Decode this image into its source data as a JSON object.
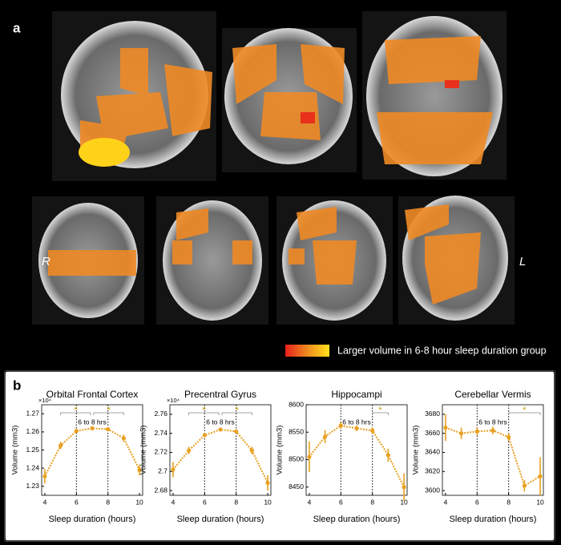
{
  "panel_a": {
    "label": "a",
    "side_labels": [
      "R",
      "L"
    ],
    "legend": "Larger volume in 6-8 hour sleep duration group"
  },
  "panel_b_label": "b",
  "chart_data": [
    {
      "type": "line",
      "title": "Orbital Frontal Cortex",
      "xlabel": "Sleep duration (hours)",
      "ylabel": "Volume (mm3)",
      "y_multiplier": "×10⁴",
      "color": "#e8a020",
      "x": [
        4,
        5,
        6,
        7,
        8,
        9,
        10
      ],
      "values": [
        1.2355,
        1.2525,
        1.2605,
        1.262,
        1.2615,
        1.2565,
        1.239
      ],
      "errors": [
        0.004,
        0.002,
        0.001,
        0.001,
        0.001,
        0.002,
        0.003
      ],
      "xlim": [
        3.8,
        10.2
      ],
      "xticks": [
        4,
        6,
        8,
        10
      ],
      "ylim": [
        1.225,
        1.275
      ],
      "yticks": [
        1.23,
        1.24,
        1.25,
        1.26,
        1.27
      ],
      "reference_lines": [
        6,
        8
      ],
      "reference_label": "6 to 8 hrs",
      "significance": [
        {
          "x": [
            5,
            6.9
          ],
          "label": "*"
        },
        {
          "x": [
            7.1,
            9
          ],
          "label": "*"
        }
      ]
    },
    {
      "type": "line",
      "title": "Precentral Gyrus",
      "xlabel": "Sleep duration (hours)",
      "ylabel": "Volume (mm3)",
      "y_multiplier": "×10⁴",
      "color": "#e8a020",
      "x": [
        4,
        5,
        6,
        7,
        8,
        9,
        10
      ],
      "values": [
        2.702,
        2.722,
        2.738,
        2.744,
        2.742,
        2.722,
        2.688
      ],
      "errors": [
        0.008,
        0.004,
        0.002,
        0.002,
        0.002,
        0.004,
        0.008
      ],
      "xlim": [
        3.8,
        10.2
      ],
      "xticks": [
        4,
        6,
        8,
        10
      ],
      "ylim": [
        2.675,
        2.77
      ],
      "yticks": [
        2.68,
        2.7,
        2.72,
        2.74,
        2.76
      ],
      "reference_lines": [
        6,
        8
      ],
      "reference_label": "6 to 8 hrs",
      "significance": [
        {
          "x": [
            5,
            6.9
          ],
          "label": "*"
        },
        {
          "x": [
            7.1,
            9
          ],
          "label": "*"
        }
      ]
    },
    {
      "type": "line",
      "title": "Hippocampi",
      "xlabel": "Sleep duration (hours)",
      "ylabel": "Volume (mm3)",
      "color": "#e8a020",
      "x": [
        4,
        5,
        6,
        7,
        8,
        9,
        10
      ],
      "values": [
        8505,
        8542,
        8562,
        8557,
        8553,
        8508,
        8450
      ],
      "errors": [
        28,
        12,
        6,
        5,
        6,
        12,
        25
      ],
      "xlim": [
        3.8,
        10.2
      ],
      "xticks": [
        4,
        6,
        8,
        10
      ],
      "ylim": [
        8435,
        8600
      ],
      "yticks": [
        8450,
        8500,
        8550,
        8600
      ],
      "reference_lines": [
        6,
        8
      ],
      "reference_label": "6 to 8 hrs",
      "significance": [
        {
          "x": [
            8,
            9
          ],
          "label": "*"
        }
      ]
    },
    {
      "type": "line",
      "title": "Cerebellar Vermis",
      "xlabel": "Sleep duration (hours)",
      "ylabel": "Volume (mm3)",
      "color": "#e8a020",
      "x": [
        4,
        5,
        6,
        7,
        8,
        9,
        10
      ],
      "values": [
        3666,
        3660,
        3662,
        3663,
        3656,
        3605,
        3615
      ],
      "errors": [
        14,
        6,
        4,
        4,
        4,
        6,
        20
      ],
      "xlim": [
        3.8,
        10.2
      ],
      "xticks": [
        4,
        6,
        8,
        10
      ],
      "ylim": [
        3595,
        3690
      ],
      "yticks": [
        3600,
        3620,
        3640,
        3660,
        3680
      ],
      "reference_lines": [
        6,
        8
      ],
      "reference_label": "6 to 8 hrs",
      "significance": [
        {
          "x": [
            8,
            10
          ],
          "label": "*"
        }
      ]
    }
  ]
}
